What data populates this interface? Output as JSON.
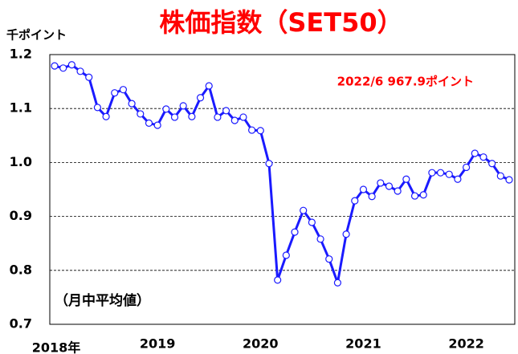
{
  "chart_data": {
    "type": "line",
    "title": "株価指数（SET50）",
    "y_label": "千ポイント",
    "annotation": "2022/6  967.9ポイント",
    "note": "（月中平均値）",
    "categories": [
      "2018年",
      null,
      null,
      null,
      null,
      null,
      null,
      null,
      null,
      null,
      null,
      null,
      "2019",
      null,
      null,
      null,
      null,
      null,
      null,
      null,
      null,
      null,
      null,
      null,
      "2020",
      null,
      null,
      null,
      null,
      null,
      null,
      null,
      null,
      null,
      null,
      null,
      "2021",
      null,
      null,
      null,
      null,
      null,
      null,
      null,
      null,
      null,
      null,
      null,
      "2022",
      null,
      null,
      null,
      null,
      null
    ],
    "series": [
      {
        "name": "SET50",
        "color": "#1a1aff",
        "values": [
          1.179,
          1.175,
          1.181,
          1.169,
          1.158,
          1.102,
          1.085,
          1.129,
          1.135,
          1.109,
          1.09,
          1.073,
          1.069,
          1.099,
          1.084,
          1.105,
          1.085,
          1.12,
          1.142,
          1.084,
          1.096,
          1.078,
          1.084,
          1.06,
          1.059,
          0.998,
          0.782,
          0.828,
          0.871,
          0.911,
          0.889,
          0.858,
          0.821,
          0.777,
          0.867,
          0.929,
          0.95,
          0.937,
          0.962,
          0.956,
          0.947,
          0.969,
          0.938,
          0.94,
          0.981,
          0.981,
          0.978,
          0.969,
          0.991,
          1.017,
          1.01,
          0.998,
          0.975,
          0.9679
        ]
      }
    ],
    "ylim": [
      0.7,
      1.2
    ],
    "yticks": [
      0.7,
      0.8,
      0.9,
      {
        "value": 1,
        "label": "1.0"
      },
      1.1,
      1.2
    ],
    "grid": true
  }
}
